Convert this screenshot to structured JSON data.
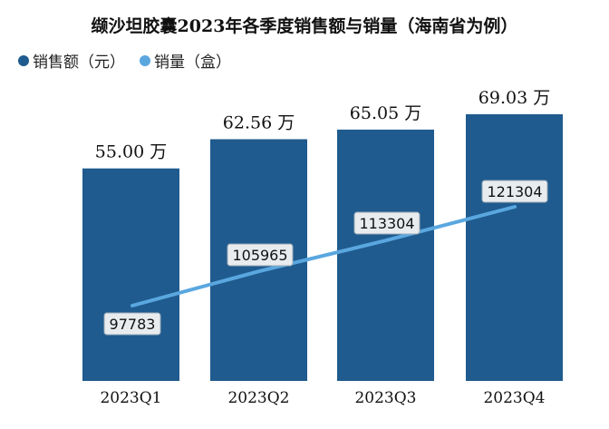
{
  "chart_data": {
    "type": "bar",
    "title": "缬沙坦胶囊2023年各季度销售额与销量（海南省为例）",
    "categories": [
      "2023Q1",
      "2023Q2",
      "2023Q3",
      "2023Q4"
    ],
    "series": [
      {
        "name": "销售额（元）",
        "type": "bar",
        "values": [
          55.0,
          62.56,
          65.05,
          69.03
        ],
        "labels": [
          "55.00 万",
          "62.56 万",
          "65.05 万",
          "69.03 万"
        ],
        "unit": "万",
        "color": "#1f5b8e"
      },
      {
        "name": "销量（盒）",
        "type": "line",
        "values": [
          97783,
          105965,
          113304,
          121304
        ],
        "labels": [
          "97783",
          "105965",
          "113304",
          "121304"
        ],
        "color": "#5aa7e0"
      }
    ],
    "legend_position": "top-left",
    "ylim_bar": [
      0,
      80
    ],
    "ylim_line": [
      50000,
      180000
    ]
  }
}
